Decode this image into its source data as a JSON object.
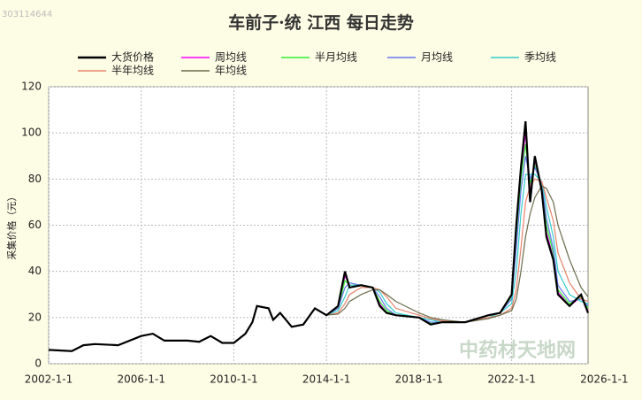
{
  "chart_data": {
    "type": "line",
    "title": "车前子·统 江西 每日走势",
    "watermark": "303114644",
    "logo": "中药材天地网",
    "ylabel": "采集价格（元）",
    "x": [
      2002,
      2003,
      2003.5,
      2004,
      2005,
      2006,
      2006.5,
      2007,
      2008,
      2008.5,
      2009,
      2009.5,
      2010,
      2010.5,
      2010.8,
      2011,
      2011.5,
      2011.7,
      2012,
      2012.5,
      2013,
      2013.5,
      2014,
      2014.5,
      2014.8,
      2015,
      2015.5,
      2016,
      2016.3,
      2016.6,
      2017,
      2018,
      2018.5,
      2019,
      2020,
      2021,
      2021.5,
      2022,
      2022.2,
      2022.4,
      2022.6,
      2022.8,
      2023,
      2023.3,
      2023.5,
      2023.8,
      2024,
      2024.5,
      2025,
      2025.3
    ],
    "series": [
      {
        "name": "周均线",
        "color": "#ff00ff",
        "values": [
          null,
          null,
          null,
          null,
          null,
          null,
          null,
          null,
          null,
          null,
          null,
          null,
          null,
          null,
          null,
          null,
          null,
          null,
          null,
          null,
          null,
          null,
          21,
          25,
          38,
          34,
          34,
          33,
          26,
          22,
          21,
          20,
          17,
          18,
          18,
          21,
          22,
          30,
          58,
          82,
          100,
          75,
          88,
          76,
          57,
          46,
          31,
          25,
          29,
          23
        ]
      },
      {
        "name": "半月均线",
        "color": "#33ee33",
        "values": [
          null,
          null,
          null,
          null,
          null,
          null,
          null,
          null,
          null,
          null,
          null,
          null,
          null,
          null,
          null,
          null,
          null,
          null,
          null,
          null,
          null,
          null,
          21,
          24,
          36,
          34,
          34,
          33,
          27,
          23,
          21,
          20,
          17.5,
          18,
          18,
          21,
          22,
          29,
          55,
          80,
          95,
          78,
          86,
          77,
          60,
          48,
          32,
          26,
          29,
          24
        ]
      },
      {
        "name": "月均线",
        "color": "#6677ee",
        "values": [
          null,
          null,
          null,
          null,
          null,
          null,
          null,
          null,
          null,
          null,
          null,
          null,
          null,
          null,
          null,
          null,
          null,
          null,
          null,
          null,
          null,
          null,
          21,
          24,
          33,
          35,
          34,
          33,
          29,
          24,
          21,
          20,
          18,
          18,
          18,
          21,
          22,
          28,
          50,
          75,
          90,
          80,
          85,
          78,
          63,
          50,
          34,
          27,
          28,
          25
        ]
      },
      {
        "name": "季均线",
        "color": "#33cccc",
        "values": [
          null,
          null,
          null,
          null,
          null,
          null,
          null,
          null,
          null,
          null,
          null,
          null,
          null,
          null,
          null,
          null,
          null,
          null,
          null,
          null,
          null,
          null,
          21,
          23,
          29,
          34,
          34,
          33,
          31,
          26,
          22,
          20,
          19,
          18,
          18,
          20,
          22,
          26,
          40,
          65,
          82,
          82,
          82,
          79,
          68,
          55,
          40,
          30,
          27,
          26
        ]
      },
      {
        "name": "半年均线",
        "color": "#e8826a",
        "values": [
          null,
          null,
          null,
          null,
          null,
          null,
          null,
          null,
          null,
          null,
          null,
          null,
          null,
          null,
          null,
          null,
          null,
          null,
          null,
          null,
          null,
          null,
          21,
          22,
          26,
          30,
          33,
          33,
          32,
          29,
          24,
          21,
          19.5,
          18.5,
          18,
          20,
          21,
          24,
          32,
          50,
          70,
          77,
          80,
          79,
          72,
          62,
          48,
          35,
          28,
          27
        ]
      },
      {
        "name": "年均线",
        "color": "#6b6b4a",
        "values": [
          null,
          null,
          null,
          null,
          null,
          null,
          null,
          null,
          null,
          null,
          null,
          null,
          null,
          null,
          null,
          null,
          null,
          null,
          null,
          null,
          null,
          null,
          21,
          21.5,
          24,
          27,
          30,
          32,
          32,
          30,
          27,
          22,
          20,
          19,
          18,
          19.5,
          21,
          23,
          28,
          40,
          55,
          65,
          72,
          77,
          76,
          70,
          60,
          45,
          33,
          29
        ]
      },
      {
        "name": "大货价格",
        "color": "#000000",
        "values": [
          6,
          5.5,
          8,
          8.5,
          8,
          12,
          13,
          10,
          10,
          9.5,
          12,
          9,
          9,
          13,
          18,
          25,
          24,
          19,
          22,
          16,
          17,
          24,
          21,
          25,
          40,
          33,
          34,
          33,
          25,
          22,
          21,
          20,
          17,
          18,
          18,
          21,
          22,
          30,
          60,
          85,
          105,
          70,
          90,
          75,
          55,
          45,
          30,
          25,
          30,
          22
        ]
      }
    ],
    "xlim": [
      2002,
      2025.3
    ],
    "xticks": [
      {
        "value": 2002,
        "label": "2002-1-1"
      },
      {
        "value": 2006,
        "label": "2006-1-1"
      },
      {
        "value": 2010,
        "label": "2010-1-1"
      },
      {
        "value": 2014,
        "label": "2014-1-1"
      },
      {
        "value": 2018,
        "label": "2018-1-1"
      },
      {
        "value": 2022,
        "label": "2022-1-1"
      },
      {
        "value": 2026,
        "label": "2026-1-1"
      }
    ],
    "ylim": [
      0,
      120
    ],
    "yticks": [
      0,
      20,
      40,
      60,
      80,
      100,
      120
    ],
    "grid": true
  }
}
